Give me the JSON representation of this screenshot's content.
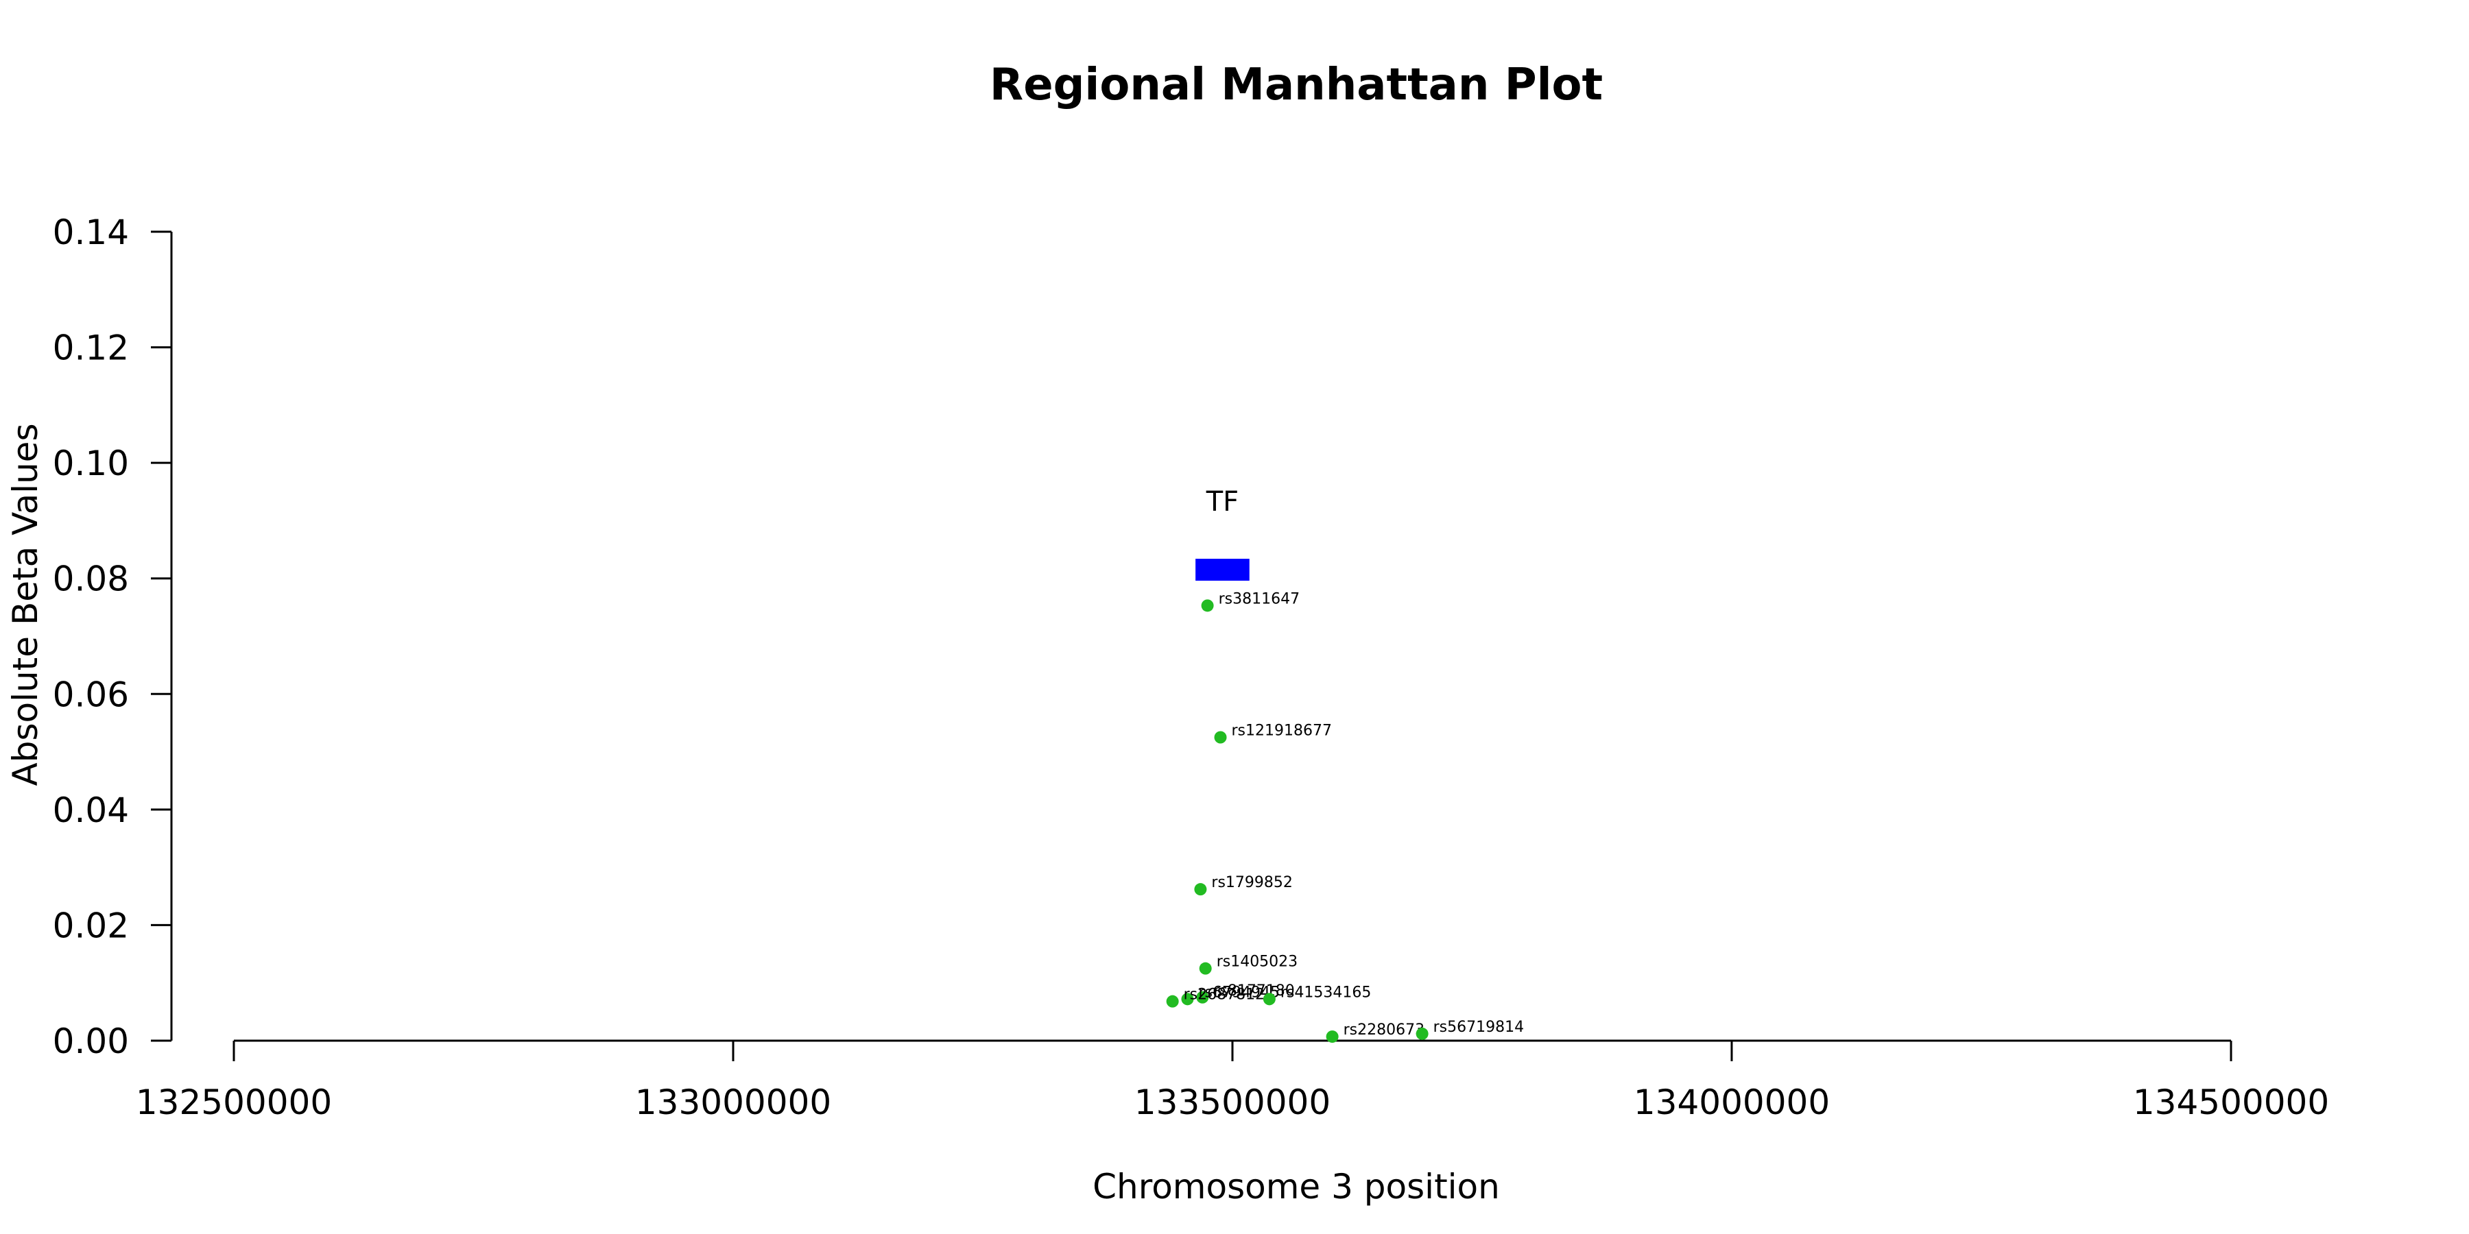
{
  "chart_data": {
    "type": "scatter",
    "title": "Regional Manhattan Plot",
    "xlabel": "Chromosome 3 position",
    "ylabel": "Absolute Beta Values",
    "xlim": [
      132500000,
      134500000
    ],
    "ylim": [
      0,
      0.14
    ],
    "xticks": [
      "132500000",
      "133000000",
      "133500000",
      "134000000",
      "134500000"
    ],
    "yticks": [
      "0.00",
      "0.02",
      "0.04",
      "0.06",
      "0.08",
      "0.10",
      "0.12",
      "0.14"
    ],
    "grid": false,
    "point_color": "#22bb22",
    "points": [
      {
        "label": "rs3811647",
        "x": 133475000,
        "y": 0.0753
      },
      {
        "label": "rs121918677",
        "x": 133488000,
        "y": 0.0525
      },
      {
        "label": "rs1799852",
        "x": 133468000,
        "y": 0.0262
      },
      {
        "label": "rs1405023",
        "x": 133473000,
        "y": 0.0125
      },
      {
        "label": "rs8177180",
        "x": 133470000,
        "y": 0.0075
      },
      {
        "label": "rs6794945",
        "x": 133455000,
        "y": 0.0072
      },
      {
        "label": "rs2687812",
        "x": 133440000,
        "y": 0.0068
      },
      {
        "label": "rs41534165",
        "x": 133537000,
        "y": 0.0072
      },
      {
        "label": "rs2280673",
        "x": 133600000,
        "y": 0.0007
      },
      {
        "label": "rs56719814",
        "x": 133690000,
        "y": 0.0012
      }
    ],
    "genes": [
      {
        "name": "TF",
        "start": 133463000,
        "end": 133517000,
        "y": 0.0815,
        "color": "#0000ff"
      }
    ]
  }
}
